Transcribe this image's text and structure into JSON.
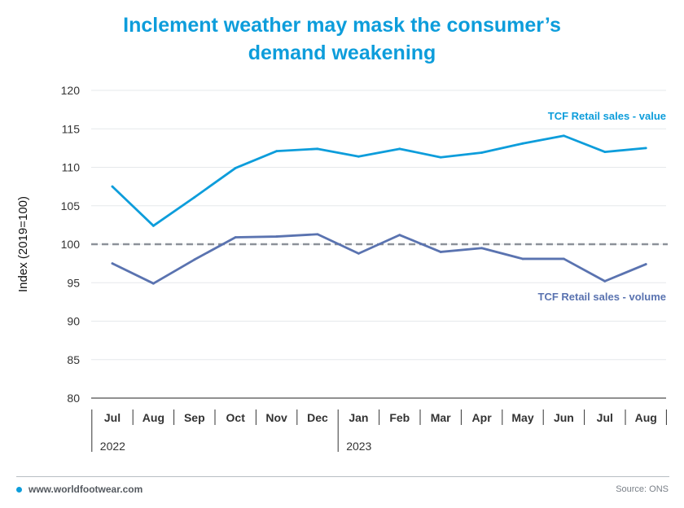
{
  "title_line1": "Inclement weather may mask the consumer’s",
  "title_line2": "demand weakening",
  "footer": {
    "website": "www.worldfootwear.com",
    "source": "Source: ONS"
  },
  "chart_data": {
    "type": "line",
    "ylabel": "Index (2019=100)",
    "ylim": [
      80,
      120
    ],
    "yticks": [
      80,
      85,
      90,
      95,
      100,
      105,
      110,
      115,
      120
    ],
    "categories": [
      "Jul",
      "Aug",
      "Sep",
      "Oct",
      "Nov",
      "Dec",
      "Jan",
      "Feb",
      "Mar",
      "Apr",
      "May",
      "Jun",
      "Jul",
      "Aug"
    ],
    "year_groups": [
      {
        "label": "2022",
        "start_index": 0
      },
      {
        "label": "2023",
        "start_index": 6
      }
    ],
    "reference_line": {
      "value": 100,
      "color": "#8c9199",
      "style": "dashed"
    },
    "grid": true,
    "series": [
      {
        "name": "TCF Retail sales - value",
        "color": "#0d9ddb",
        "values": [
          107.5,
          102.4,
          106.1,
          109.9,
          112.1,
          112.4,
          111.4,
          112.4,
          111.3,
          111.9,
          113.1,
          114.1,
          112.0,
          112.5
        ]
      },
      {
        "name": "TCF Retail sales - volume",
        "color": "#5a73b0",
        "values": [
          97.5,
          94.9,
          98.0,
          100.9,
          101.0,
          101.3,
          98.8,
          101.2,
          99.0,
          99.5,
          98.1,
          98.1,
          95.2,
          97.4
        ]
      }
    ]
  }
}
